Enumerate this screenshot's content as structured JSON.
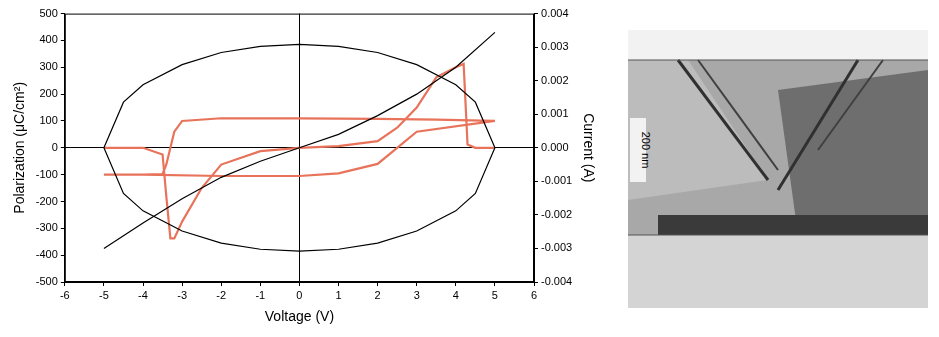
{
  "chart_data": {
    "type": "line",
    "x_label": "Voltage (V)",
    "y_label": "Polarization (μC/cm²)",
    "y2_label": "Current (A)",
    "xlim": [
      -6,
      6
    ],
    "xticks": [
      -6,
      -5,
      -4,
      -3,
      -2,
      -1,
      0,
      1,
      2,
      3,
      4,
      5,
      6
    ],
    "ylim": [
      -500,
      500
    ],
    "yticks": [
      -500,
      -400,
      -300,
      -200,
      -100,
      0,
      100,
      200,
      300,
      400,
      500
    ],
    "y2lim": [
      -0.004,
      0.004
    ],
    "y2ticks": [
      -0.004,
      -0.003,
      -0.002,
      -0.001,
      {
        "value": 0,
        "label": "0.000"
      },
      0.001,
      0.002,
      0.003,
      0.004
    ],
    "series": [
      {
        "color": "#000000",
        "x": [
          -5,
          -4.5,
          -4,
          -3,
          -2,
          -1,
          0,
          1,
          2,
          3,
          4,
          4.5,
          5,
          4.5,
          4,
          3,
          2,
          1,
          0,
          -1,
          -2,
          -3,
          -4,
          -4.5,
          -5
        ],
        "values": [
          0,
          170,
          235,
          310,
          355,
          378,
          385,
          378,
          355,
          310,
          235,
          170,
          0,
          -170,
          -235,
          -310,
          -355,
          -378,
          -385,
          -378,
          -355,
          -310,
          -235,
          -170,
          0
        ]
      },
      {
        "color": "#000000",
        "x": [
          -5,
          -4,
          -3,
          -2,
          -1,
          0,
          1,
          2,
          3,
          4,
          5
        ],
        "values": [
          -375,
          -280,
          -190,
          -110,
          -50,
          0,
          50,
          120,
          200,
          300,
          430
        ]
      },
      {
        "color": "#e8735a",
        "x": [
          -5,
          -4,
          -3.5,
          -3.4,
          -3.3,
          -3.2,
          -3,
          -2,
          0,
          2,
          3.5,
          5,
          5,
          3,
          2.5,
          2,
          1,
          0,
          -2,
          -4,
          -5
        ],
        "values": [
          -100,
          -100,
          -98,
          -60,
          0,
          60,
          100,
          110,
          110,
          108,
          105,
          100,
          100,
          60,
          0,
          -60,
          -95,
          -105,
          -105,
          -100,
          -100
        ]
      },
      {
        "color": "#e8735a",
        "axis": "y2",
        "x": [
          -5,
          -4,
          -3.5,
          -3.4,
          -3.3,
          -3.2,
          -3,
          -2.5,
          -2,
          -1,
          0,
          1,
          2,
          2.5,
          3,
          3.5,
          4,
          4.2,
          4.3,
          4.5,
          5
        ],
        "values": [
          0,
          0,
          -0.0002,
          -0.0015,
          -0.0027,
          -0.0027,
          -0.0022,
          -0.0012,
          -0.0005,
          -0.0001,
          0,
          5e-05,
          0.0002,
          0.0006,
          0.0012,
          0.0021,
          0.0024,
          0.0025,
          0.0001,
          0,
          0
        ]
      }
    ]
  },
  "micrograph": {
    "scale_label": "200 nm"
  }
}
